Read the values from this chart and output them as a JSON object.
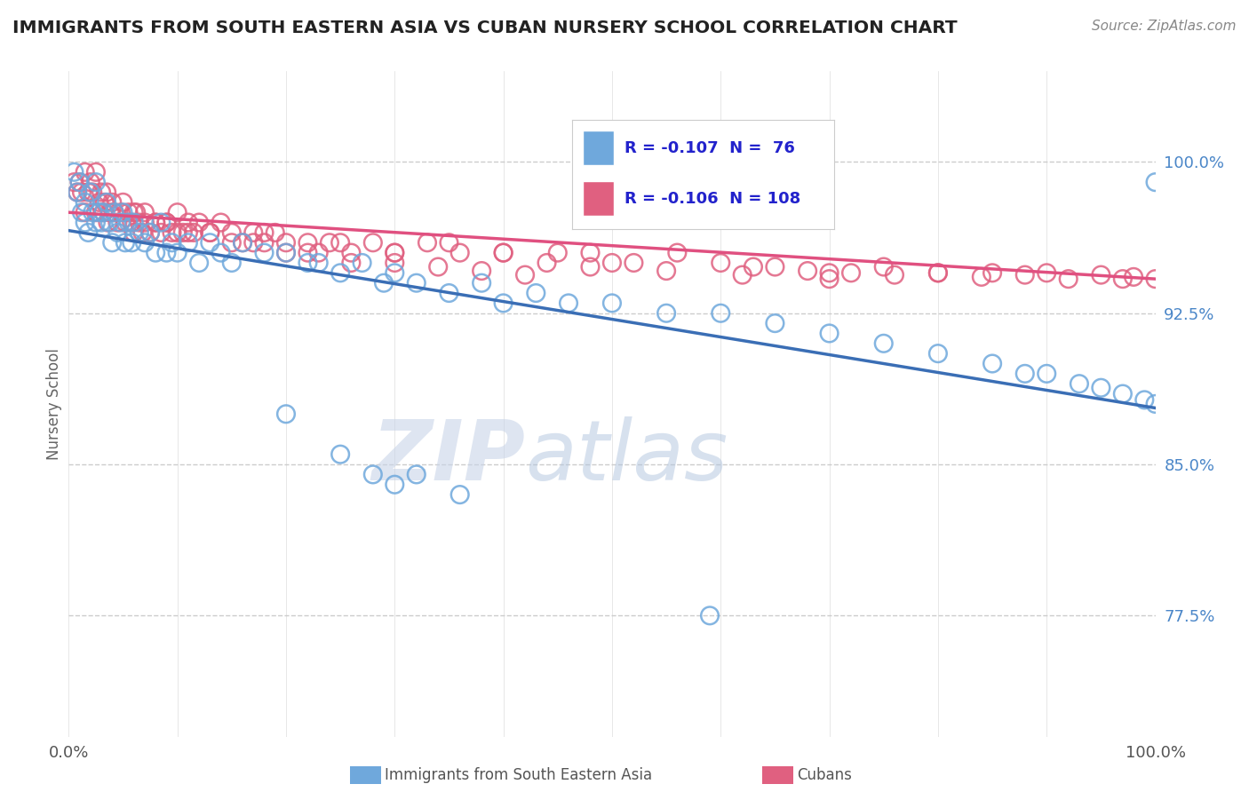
{
  "title": "IMMIGRANTS FROM SOUTH EASTERN ASIA VS CUBAN NURSERY SCHOOL CORRELATION CHART",
  "source": "Source: ZipAtlas.com",
  "ylabel": "Nursery School",
  "ytick_labels": [
    "77.5%",
    "85.0%",
    "92.5%",
    "100.0%"
  ],
  "ytick_values": [
    0.775,
    0.85,
    0.925,
    1.0
  ],
  "xlim": [
    0.0,
    1.0
  ],
  "ylim": [
    0.715,
    1.045
  ],
  "blue_color": "#6fa8dc",
  "pink_color": "#e06080",
  "blue_line_color": "#3a6eb5",
  "pink_line_color": "#e05080",
  "watermark_zip": "ZIP",
  "watermark_atlas": "atlas",
  "legend_text1": "R = -0.107  N =  76",
  "legend_text2": "R = -0.106  N = 108",
  "blue_x": [
    0.005,
    0.008,
    0.01,
    0.012,
    0.015,
    0.015,
    0.018,
    0.02,
    0.022,
    0.025,
    0.025,
    0.028,
    0.03,
    0.032,
    0.035,
    0.038,
    0.04,
    0.042,
    0.045,
    0.048,
    0.05,
    0.052,
    0.055,
    0.058,
    0.06,
    0.065,
    0.07,
    0.075,
    0.08,
    0.085,
    0.09,
    0.095,
    0.1,
    0.11,
    0.12,
    0.13,
    0.14,
    0.15,
    0.16,
    0.18,
    0.2,
    0.22,
    0.23,
    0.25,
    0.27,
    0.29,
    0.3,
    0.32,
    0.35,
    0.38,
    0.4,
    0.43,
    0.46,
    0.5,
    0.55,
    0.6,
    0.65,
    0.7,
    0.75,
    0.8,
    0.85,
    0.88,
    0.9,
    0.93,
    0.95,
    0.97,
    0.99,
    1.0,
    1.0,
    0.59,
    0.2,
    0.25,
    0.28,
    0.3,
    0.32,
    0.36
  ],
  "blue_y": [
    0.995,
    0.985,
    0.99,
    0.975,
    0.98,
    0.97,
    0.965,
    0.985,
    0.975,
    0.99,
    0.97,
    0.975,
    0.97,
    0.975,
    0.98,
    0.97,
    0.96,
    0.975,
    0.965,
    0.97,
    0.975,
    0.96,
    0.97,
    0.96,
    0.97,
    0.965,
    0.96,
    0.965,
    0.955,
    0.97,
    0.955,
    0.96,
    0.955,
    0.96,
    0.95,
    0.96,
    0.955,
    0.95,
    0.96,
    0.955,
    0.955,
    0.95,
    0.95,
    0.945,
    0.95,
    0.94,
    0.945,
    0.94,
    0.935,
    0.94,
    0.93,
    0.935,
    0.93,
    0.93,
    0.925,
    0.925,
    0.92,
    0.915,
    0.91,
    0.905,
    0.9,
    0.895,
    0.895,
    0.89,
    0.888,
    0.885,
    0.882,
    0.88,
    0.99,
    0.775,
    0.875,
    0.855,
    0.845,
    0.84,
    0.845,
    0.835
  ],
  "pink_x": [
    0.005,
    0.008,
    0.01,
    0.012,
    0.015,
    0.015,
    0.018,
    0.02,
    0.022,
    0.025,
    0.025,
    0.028,
    0.03,
    0.032,
    0.033,
    0.035,
    0.036,
    0.038,
    0.04,
    0.042,
    0.045,
    0.048,
    0.05,
    0.052,
    0.055,
    0.058,
    0.06,
    0.062,
    0.065,
    0.068,
    0.07,
    0.075,
    0.08,
    0.085,
    0.09,
    0.095,
    0.1,
    0.105,
    0.11,
    0.115,
    0.12,
    0.13,
    0.14,
    0.15,
    0.16,
    0.17,
    0.18,
    0.19,
    0.2,
    0.22,
    0.24,
    0.26,
    0.28,
    0.3,
    0.33,
    0.36,
    0.4,
    0.44,
    0.48,
    0.52,
    0.56,
    0.6,
    0.65,
    0.7,
    0.75,
    0.8,
    0.85,
    0.9,
    0.92,
    0.95,
    0.97,
    0.98,
    1.0,
    0.63,
    0.68,
    0.72,
    0.76,
    0.8,
    0.84,
    0.88,
    0.35,
    0.4,
    0.45,
    0.5,
    0.18,
    0.22,
    0.25,
    0.3,
    0.06,
    0.07,
    0.08,
    0.09,
    0.1,
    0.11,
    0.13,
    0.15,
    0.17,
    0.2,
    0.23,
    0.26,
    0.3,
    0.34,
    0.38,
    0.42,
    0.48,
    0.55,
    0.62,
    0.7
  ],
  "pink_y": [
    0.99,
    0.985,
    0.99,
    0.985,
    0.995,
    0.975,
    0.985,
    0.99,
    0.985,
    0.995,
    0.975,
    0.98,
    0.985,
    0.975,
    0.98,
    0.985,
    0.97,
    0.975,
    0.98,
    0.975,
    0.97,
    0.975,
    0.98,
    0.97,
    0.975,
    0.97,
    0.965,
    0.975,
    0.97,
    0.965,
    0.97,
    0.965,
    0.97,
    0.965,
    0.97,
    0.965,
    0.975,
    0.965,
    0.97,
    0.965,
    0.97,
    0.965,
    0.97,
    0.965,
    0.96,
    0.965,
    0.96,
    0.965,
    0.96,
    0.955,
    0.96,
    0.955,
    0.96,
    0.955,
    0.96,
    0.955,
    0.955,
    0.95,
    0.955,
    0.95,
    0.955,
    0.95,
    0.948,
    0.945,
    0.948,
    0.945,
    0.945,
    0.945,
    0.942,
    0.944,
    0.942,
    0.943,
    0.942,
    0.948,
    0.946,
    0.945,
    0.944,
    0.945,
    0.943,
    0.944,
    0.96,
    0.955,
    0.955,
    0.95,
    0.965,
    0.96,
    0.96,
    0.955,
    0.975,
    0.975,
    0.97,
    0.97,
    0.965,
    0.965,
    0.965,
    0.96,
    0.96,
    0.955,
    0.955,
    0.95,
    0.95,
    0.948,
    0.946,
    0.944,
    0.948,
    0.946,
    0.944,
    0.942
  ]
}
